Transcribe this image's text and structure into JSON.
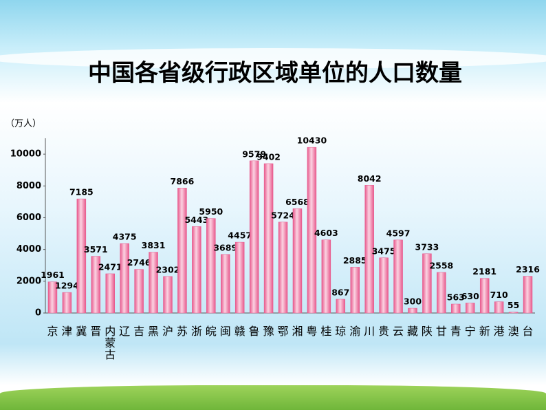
{
  "chart_data": {
    "type": "bar",
    "title": "中国各省级行政区域单位的人口数量",
    "y_label": "（万人）",
    "categories": [
      "京",
      "津",
      "冀",
      "晋",
      "内蒙古",
      "辽",
      "吉",
      "黑",
      "沪",
      "苏",
      "浙",
      "皖",
      "闽",
      "赣",
      "鲁",
      "豫",
      "鄂",
      "湘",
      "粤",
      "桂",
      "琼",
      "渝",
      "川",
      "贵",
      "云",
      "藏",
      "陕",
      "甘",
      "青",
      "宁",
      "新",
      "港",
      "澳",
      "台"
    ],
    "values": [
      1961,
      1294,
      7185,
      3571,
      2471,
      4375,
      2746,
      3831,
      2302,
      7866,
      5443,
      5950,
      3689,
      4457,
      9579,
      9402,
      5724,
      6568,
      10430,
      4603,
      867,
      2885,
      8042,
      3475,
      4597,
      300,
      3733,
      2558,
      563,
      630,
      2181,
      710,
      55,
      2316
    ],
    "color": "#e8588c",
    "ylim": [
      0,
      11000
    ],
    "yticks": [
      0,
      2000,
      4000,
      6000,
      8000,
      10000
    ],
    "grid": false
  }
}
